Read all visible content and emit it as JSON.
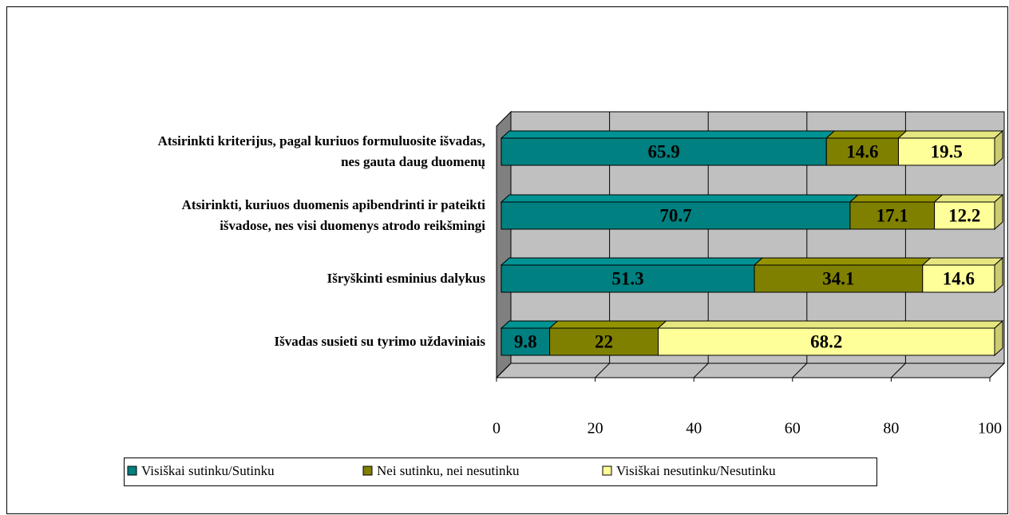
{
  "chart_data": {
    "type": "stacked-bar-3d",
    "categories": [
      "Atsirinkti kriterijus, pagal kuriuos formuluosite išvadas,\nnes gauta daug duomenų",
      "Atsirinkti, kuriuos duomenis apibendrinti ir pateikti\nišvadose, nes visi duomenys atrodo reikšmingi",
      "Išryškinti esminius dalykus",
      "Išvadas susieti su tyrimo uždaviniais"
    ],
    "series": [
      {
        "name": "Visiškai sutinku/Sutinku",
        "color": "#008080",
        "values": [
          65.9,
          70.7,
          51.3,
          9.8
        ]
      },
      {
        "name": "Nei sutinku, nei nesutinku",
        "color": "#808000",
        "values": [
          14.6,
          17.1,
          34.1,
          22
        ]
      },
      {
        "name": "Visiškai nesutinku/Nesutinku",
        "color": "#ffff99",
        "values": [
          19.5,
          12.2,
          14.6,
          68.2
        ]
      }
    ],
    "xlim": [
      0,
      100
    ],
    "xticks": [
      0,
      20,
      40,
      60,
      80,
      100
    ],
    "grid": true,
    "legend": "bottom"
  }
}
